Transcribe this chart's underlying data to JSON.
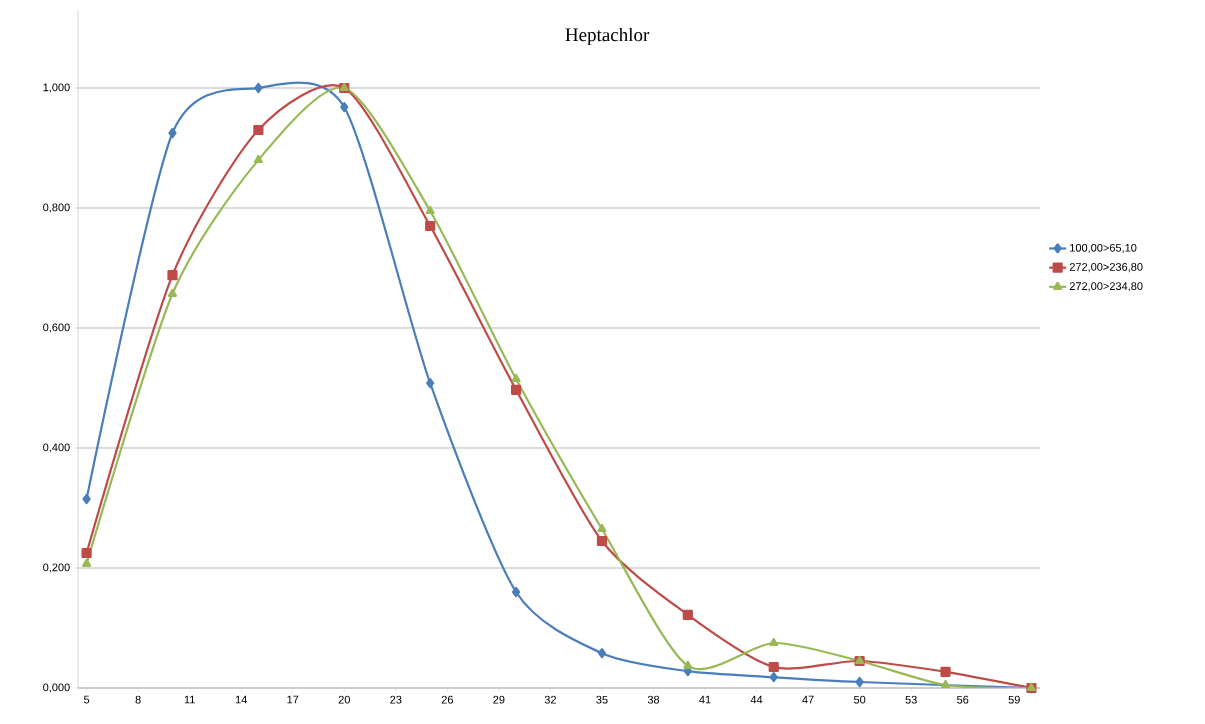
{
  "chart_data": {
    "type": "line",
    "title": "Heptachlor",
    "x": [
      5,
      10,
      15,
      20,
      25,
      30,
      35,
      40,
      45,
      50,
      55,
      60
    ],
    "xlim": [
      4.5,
      60.5
    ],
    "xticks": [
      5,
      8,
      11,
      14,
      17,
      20,
      23,
      26,
      29,
      32,
      35,
      38,
      41,
      44,
      47,
      50,
      53,
      56,
      59
    ],
    "ylim": [
      0,
      1.13
    ],
    "yticks": [
      {
        "value": 0,
        "label": "0,000"
      },
      {
        "value": 0.2,
        "label": "0,200"
      },
      {
        "value": 0.4,
        "label": "0,400"
      },
      {
        "value": 0.6,
        "label": "0,600"
      },
      {
        "value": 0.8,
        "label": "0,800"
      },
      {
        "value": 1.0,
        "label": "1,000"
      }
    ],
    "grid": "y",
    "legend": "right",
    "line_style": "solid",
    "series": [
      {
        "name": "100,00>65,10",
        "color": "#4a7ebb",
        "marker": "diamond",
        "values": [
          0.315,
          0.925,
          1.0,
          0.968,
          0.508,
          0.16,
          0.058,
          0.028,
          0.018,
          0.01,
          null,
          0.0
        ]
      },
      {
        "name": "272,00>236,80",
        "color": "#be4b48",
        "marker": "square",
        "values": [
          0.225,
          0.688,
          0.93,
          1.0,
          0.77,
          0.497,
          0.245,
          0.122,
          0.035,
          0.045,
          0.027,
          0.0
        ]
      },
      {
        "name": "272,00>234,80",
        "color": "#98b954",
        "marker": "triangle",
        "values": [
          0.207,
          0.657,
          0.88,
          1.0,
          0.795,
          0.515,
          0.265,
          0.037,
          0.075,
          0.045,
          0.005,
          0.0
        ]
      }
    ]
  }
}
